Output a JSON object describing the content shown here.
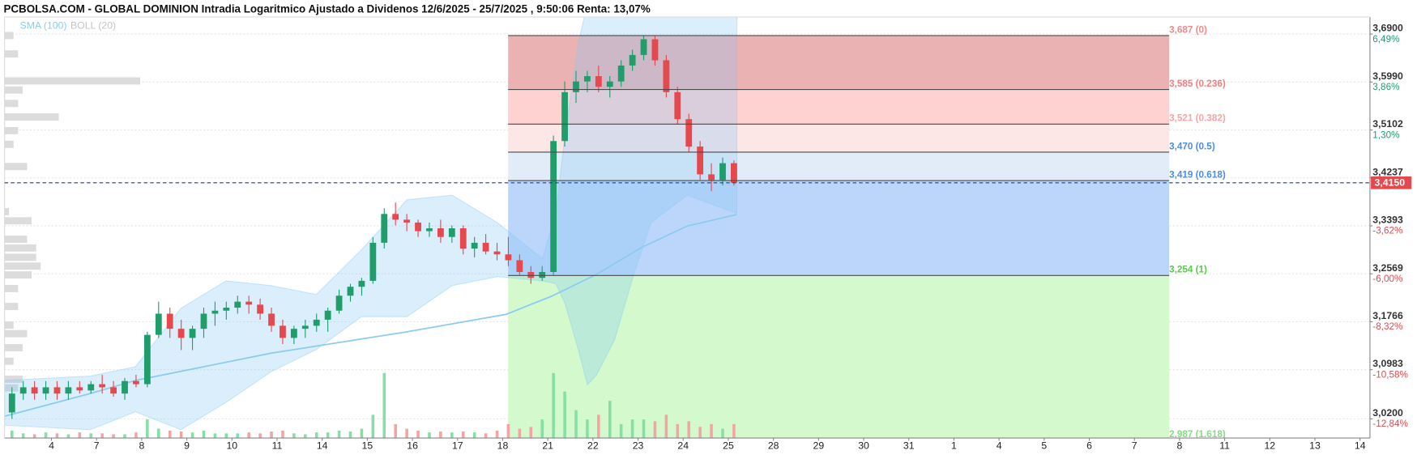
{
  "chart_data": {
    "type": "candlestick",
    "title": "PCBOLSA.COM - GLOBAL DOMINION Intradia Logaritmico Ajustado a Dividenos 12/6/2025 - 25/7/2025 , 9:50:06 Renta: 13,07%",
    "log_scale": true,
    "grid": true,
    "xlim": [
      -1.04,
      29.22
    ],
    "ylim": [
      2.99,
      3.723
    ],
    "xticks": [
      {
        "value": 0,
        "label": "4"
      },
      {
        "value": 1,
        "label": "7"
      },
      {
        "value": 2,
        "label": "8"
      },
      {
        "value": 3,
        "label": "9"
      },
      {
        "value": 4,
        "label": "10"
      },
      {
        "value": 5,
        "label": "11"
      },
      {
        "value": 6,
        "label": "14"
      },
      {
        "value": 7,
        "label": "15"
      },
      {
        "value": 8,
        "label": "16"
      },
      {
        "value": 9,
        "label": "17"
      },
      {
        "value": 10,
        "label": "18"
      },
      {
        "value": 11,
        "label": "21"
      },
      {
        "value": 12,
        "label": "22"
      },
      {
        "value": 13,
        "label": "23"
      },
      {
        "value": 14,
        "label": "24"
      },
      {
        "value": 15,
        "label": "25"
      },
      {
        "value": 16,
        "label": "28"
      },
      {
        "value": 17,
        "label": "29"
      },
      {
        "value": 18,
        "label": "30"
      },
      {
        "value": 19,
        "label": "31"
      },
      {
        "value": 20,
        "label": "1"
      },
      {
        "value": 21,
        "label": "4"
      },
      {
        "value": 22,
        "label": "5"
      },
      {
        "value": 23,
        "label": "6"
      },
      {
        "value": 24,
        "label": "7"
      },
      {
        "value": 25,
        "label": "8"
      },
      {
        "value": 26,
        "label": "11"
      },
      {
        "value": 27,
        "label": "12"
      },
      {
        "value": 28,
        "label": "13"
      },
      {
        "value": 29,
        "label": "14"
      }
    ],
    "yticks": [
      {
        "value": 3.69,
        "label": "3,6900"
      },
      {
        "value": 3.599,
        "label": "3,5990"
      },
      {
        "value": 3.5102,
        "label": "3,5102"
      },
      {
        "value": 3.4237,
        "label": "3,4237"
      },
      {
        "value": 3.3393,
        "label": "3,3393"
      },
      {
        "value": 3.2569,
        "label": "3,2569"
      },
      {
        "value": 3.1766,
        "label": "3,1766"
      },
      {
        "value": 3.0983,
        "label": "3,0983"
      },
      {
        "value": 3.02,
        "label": "3,0200"
      }
    ],
    "ytick_changes": [
      {
        "value": 6.49,
        "label": "6,49%"
      },
      {
        "value": 3.86,
        "label": "3,86%"
      },
      {
        "value": 1.3,
        "label": "1,30%"
      },
      null,
      {
        "value": -3.62,
        "label": "-3,62%"
      },
      {
        "value": -6.0,
        "label": "-6,00%"
      },
      {
        "value": -8.32,
        "label": "-8,32%"
      },
      {
        "value": -10.58,
        "label": "-10,58%"
      },
      {
        "value": -12.84,
        "label": "-12,84%"
      }
    ],
    "up_color": "#1f9e6c",
    "down_color": "#e5484d",
    "volume_up_color": "#86e0a6",
    "volume_down_color": "#f3a5a5",
    "current_price": {
      "value": 3.415,
      "label": "3,4150",
      "color": "#e5484d",
      "line_color": "#2435a8"
    },
    "candles": {
      "x": [
        -0.875,
        -0.625,
        -0.375,
        -0.125,
        0.125,
        0.375,
        0.625,
        0.875,
        1.125,
        1.375,
        1.625,
        1.875,
        2.125,
        2.375,
        2.625,
        2.875,
        3.125,
        3.375,
        3.625,
        3.875,
        4.125,
        4.375,
        4.625,
        4.875,
        5.125,
        5.375,
        5.625,
        5.875,
        6.125,
        6.375,
        6.625,
        6.875,
        7.125,
        7.375,
        7.625,
        7.875,
        8.125,
        8.375,
        8.625,
        8.875,
        9.125,
        9.375,
        9.625,
        9.875,
        10.125,
        10.375,
        10.625,
        10.875,
        11.125,
        11.375,
        11.625,
        11.875,
        12.125,
        12.375,
        12.625,
        12.875,
        13.125,
        13.375,
        13.625,
        13.875,
        14.125,
        14.375,
        14.625,
        14.875,
        15.125
      ],
      "open": [
        3.03,
        3.06,
        3.07,
        3.06,
        3.07,
        3.06,
        3.07,
        3.065,
        3.075,
        3.07,
        3.06,
        3.08,
        3.075,
        3.155,
        3.19,
        3.165,
        3.15,
        3.165,
        3.19,
        3.195,
        3.2,
        3.21,
        3.205,
        3.19,
        3.17,
        3.15,
        3.165,
        3.17,
        3.18,
        3.195,
        3.22,
        3.235,
        3.245,
        3.31,
        3.36,
        3.35,
        3.345,
        3.33,
        3.335,
        3.32,
        3.335,
        3.3,
        3.31,
        3.295,
        3.29,
        3.28,
        3.26,
        3.25,
        3.26,
        3.49,
        3.58,
        3.6,
        3.61,
        3.59,
        3.6,
        3.63,
        3.65,
        3.68,
        3.64,
        3.58,
        3.53,
        3.48,
        3.43,
        3.42,
        3.45
      ],
      "high": [
        3.07,
        3.08,
        3.08,
        3.08,
        3.08,
        3.08,
        3.08,
        3.08,
        3.09,
        3.08,
        3.085,
        3.09,
        3.16,
        3.21,
        3.2,
        3.18,
        3.17,
        3.2,
        3.21,
        3.21,
        3.22,
        3.22,
        3.215,
        3.2,
        3.18,
        3.17,
        3.18,
        3.19,
        3.2,
        3.23,
        3.24,
        3.25,
        3.32,
        3.37,
        3.38,
        3.36,
        3.35,
        3.345,
        3.35,
        3.34,
        3.34,
        3.32,
        3.325,
        3.31,
        3.32,
        3.29,
        3.27,
        3.27,
        3.5,
        3.6,
        3.62,
        3.62,
        3.63,
        3.61,
        3.64,
        3.66,
        3.687,
        3.687,
        3.65,
        3.59,
        3.54,
        3.49,
        3.45,
        3.46,
        3.455
      ],
      "low": [
        3.02,
        3.05,
        3.05,
        3.05,
        3.05,
        3.05,
        3.06,
        3.06,
        3.06,
        3.055,
        3.05,
        3.07,
        3.07,
        3.15,
        3.15,
        3.13,
        3.13,
        3.15,
        3.17,
        3.18,
        3.19,
        3.19,
        3.18,
        3.16,
        3.14,
        3.14,
        3.15,
        3.16,
        3.16,
        3.19,
        3.21,
        3.22,
        3.24,
        3.3,
        3.34,
        3.33,
        3.32,
        3.32,
        3.31,
        3.31,
        3.29,
        3.285,
        3.29,
        3.28,
        3.27,
        3.255,
        3.24,
        3.245,
        3.255,
        3.48,
        3.56,
        3.58,
        3.58,
        3.57,
        3.59,
        3.62,
        3.64,
        3.63,
        3.57,
        3.52,
        3.47,
        3.42,
        3.4,
        3.41,
        3.41
      ],
      "close": [
        3.06,
        3.07,
        3.06,
        3.07,
        3.06,
        3.07,
        3.065,
        3.075,
        3.07,
        3.06,
        3.08,
        3.075,
        3.155,
        3.19,
        3.165,
        3.15,
        3.165,
        3.19,
        3.195,
        3.2,
        3.21,
        3.205,
        3.19,
        3.17,
        3.15,
        3.165,
        3.17,
        3.18,
        3.195,
        3.22,
        3.235,
        3.245,
        3.31,
        3.36,
        3.35,
        3.345,
        3.33,
        3.335,
        3.32,
        3.335,
        3.3,
        3.31,
        3.295,
        3.29,
        3.28,
        3.26,
        3.25,
        3.26,
        3.49,
        3.58,
        3.6,
        3.61,
        3.59,
        3.6,
        3.63,
        3.65,
        3.68,
        3.64,
        3.58,
        3.53,
        3.48,
        3.43,
        3.42,
        3.45,
        3.415
      ],
      "volume": [
        8,
        5,
        4,
        6,
        5,
        4,
        6,
        5,
        5,
        4,
        4,
        6,
        20,
        10,
        8,
        7,
        6,
        8,
        5,
        5,
        5,
        6,
        5,
        7,
        8,
        5,
        4,
        6,
        6,
        8,
        7,
        10,
        25,
        70,
        15,
        10,
        8,
        6,
        7,
        6,
        7,
        6,
        5,
        8,
        15,
        10,
        12,
        20,
        70,
        50,
        30,
        20,
        25,
        40,
        15,
        20,
        20,
        18,
        25,
        15,
        18,
        12,
        15,
        10,
        15
      ]
    },
    "sma": {
      "name": "SMA (100)",
      "color": "#8ccbf0",
      "x": [
        -1.04,
        0.86,
        1.86,
        4.87,
        7.88,
        10.08,
        11.08,
        12.08,
        13.08,
        14.09,
        15.19
      ],
      "values": [
        3.024,
        3.06,
        3.081,
        3.125,
        3.16,
        3.189,
        3.219,
        3.256,
        3.302,
        3.339,
        3.359
      ]
    },
    "bollinger": {
      "name": "BOLL (20)",
      "color": "#87c8f5",
      "x": [
        -1.04,
        0.86,
        1.86,
        2.87,
        3.87,
        4.87,
        5.87,
        6.87,
        7.88,
        8.88,
        9.88,
        10.88,
        11.18,
        11.38,
        11.68,
        11.88,
        12.08,
        12.48,
        12.89,
        13.29,
        14.09,
        15.19
      ],
      "upper": [
        3.081,
        3.088,
        3.103,
        3.199,
        3.245,
        3.237,
        3.222,
        3.298,
        3.385,
        3.393,
        3.345,
        3.283,
        3.361,
        3.5,
        3.675,
        3.75,
        3.75,
        3.75,
        3.75,
        3.75,
        3.75,
        3.75
      ],
      "lower": [
        3.01,
        3.003,
        3.031,
        3.003,
        3.046,
        3.095,
        3.131,
        3.185,
        3.185,
        3.237,
        3.252,
        3.245,
        3.24,
        3.207,
        3.13,
        3.074,
        3.09,
        3.147,
        3.252,
        3.345,
        3.393,
        3.361
      ]
    },
    "volume_profile": {
      "color": "#dcdcdc",
      "prices": [
        3.687,
        3.652,
        3.601,
        3.584,
        3.559,
        3.534,
        3.509,
        3.484,
        3.444,
        3.364,
        3.348,
        3.316,
        3.301,
        3.285,
        3.27,
        3.255,
        3.232,
        3.202,
        3.171,
        3.157,
        3.134,
        3.112,
        3.083,
        3.069
      ],
      "volumes": [
        10,
        15,
        150,
        20,
        15,
        60,
        15,
        10,
        25,
        5,
        30,
        25,
        35,
        35,
        40,
        30,
        15,
        15,
        10,
        25,
        20,
        10,
        20,
        15
      ]
    },
    "fibonacci": {
      "x_range": [
        10.12,
        24.77
      ],
      "line_color": "#4a4a4a",
      "levels": [
        {
          "value": 3.687,
          "label": "3,687 (0)"
        },
        {
          "value": 3.585,
          "label": "3,585 (0.236)"
        },
        {
          "value": 3.521,
          "label": "3,521 (0.382)"
        },
        {
          "value": 3.47,
          "label": "3,470 (0.5)"
        },
        {
          "value": 3.419,
          "label": "3,419 (0.618)"
        },
        {
          "value": 3.254,
          "label": "3,254 (1)"
        },
        {
          "value": 2.987,
          "label": "2,987 (1.618)"
        }
      ],
      "label_colors": [
        "#ee8a8a",
        "#f08080",
        "#f4a6a6",
        "#4a8fe0",
        "#4a8fe0",
        "#5cc94e",
        "#8ad987"
      ],
      "zone_colors": [
        "#eab2b2",
        "#ffd2d2",
        "#fde6e6",
        "#e2ecf8",
        "#bcd6fb",
        "#d3f9cd"
      ]
    }
  }
}
